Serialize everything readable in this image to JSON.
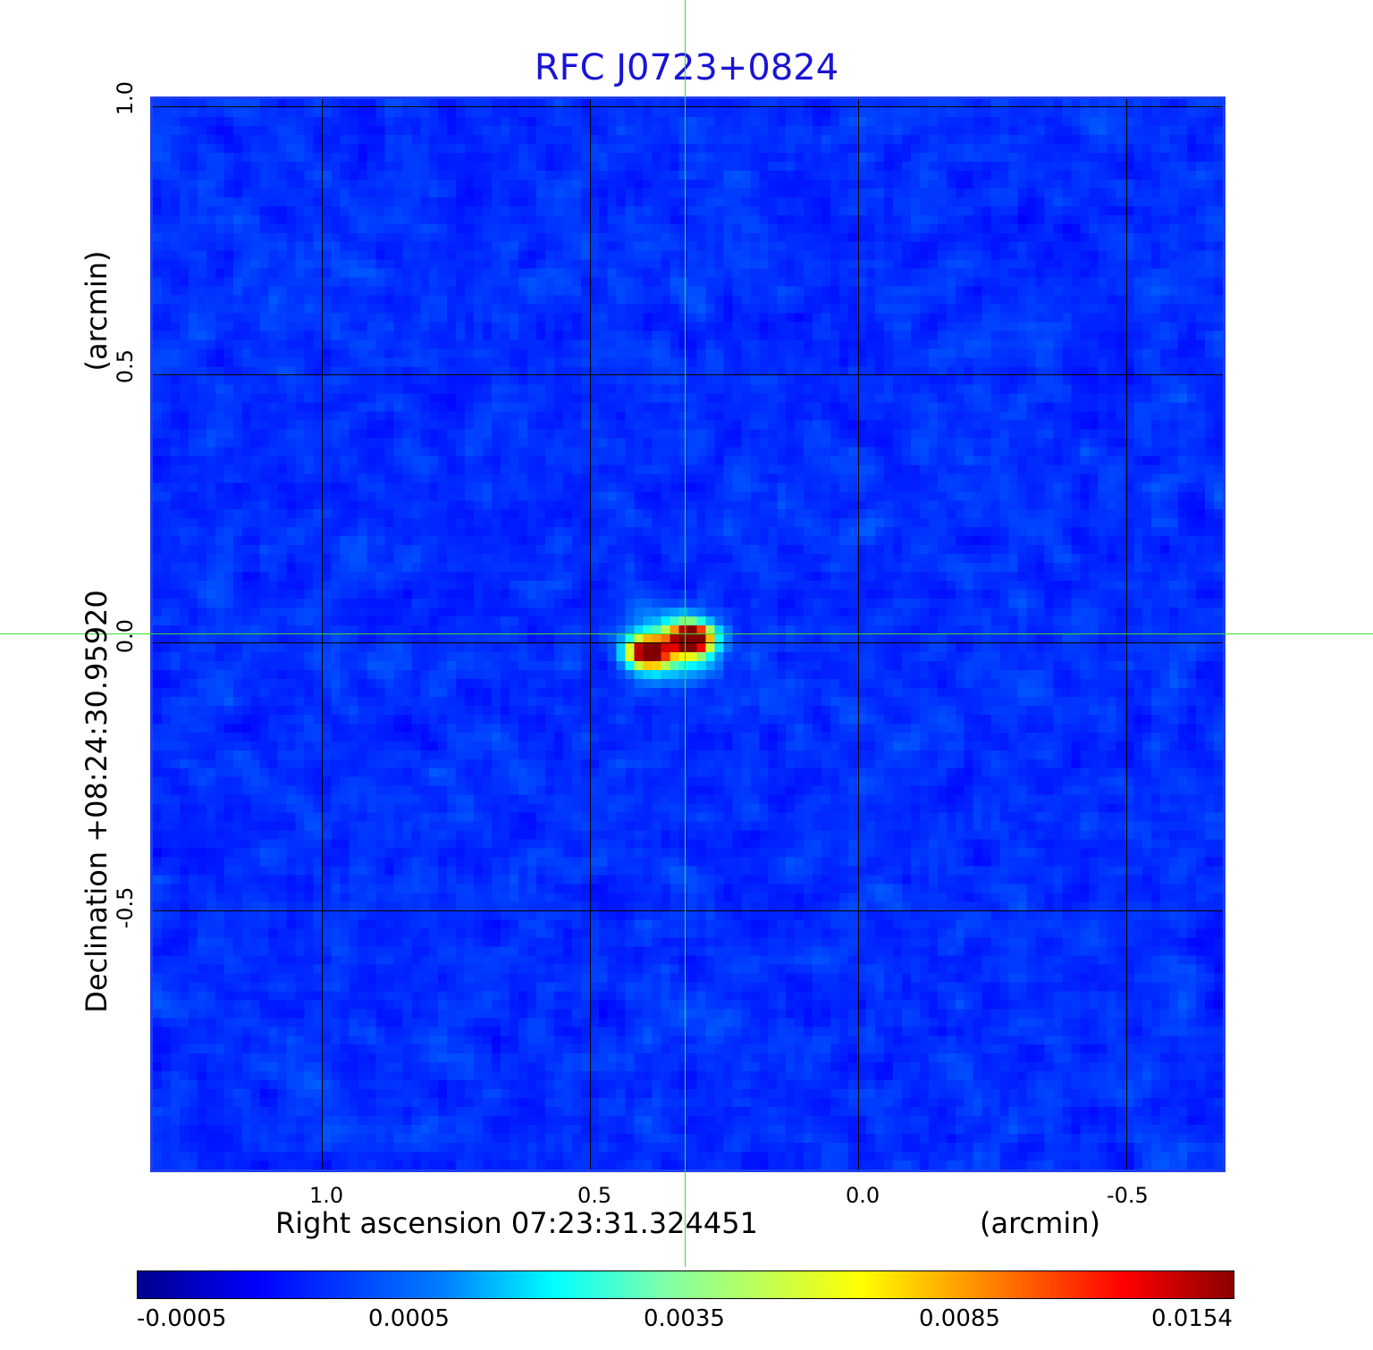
{
  "title": "RFC J0723+0824",
  "x_axis": {
    "label": "Right ascension  07:23:31.324451",
    "units": "(arcmin)",
    "ticks": [
      "1.0",
      "0.5",
      "0.0",
      "-0.5"
    ]
  },
  "y_axis": {
    "label": "Declination  +08:24:30.95920",
    "units": "(arcmin)",
    "ticks": [
      "1.0",
      "0.5",
      "0.0",
      "-0.5"
    ]
  },
  "colorbar": {
    "ticks": [
      "-0.0005",
      "0.0005",
      "0.0035",
      "0.0085",
      "0.0154"
    ],
    "colormap": "jet"
  },
  "colors": {
    "title": "#1a14d6",
    "frame": "#1f3ff0",
    "crosshair": "#33dd33",
    "background_field": "#2060f0"
  }
}
